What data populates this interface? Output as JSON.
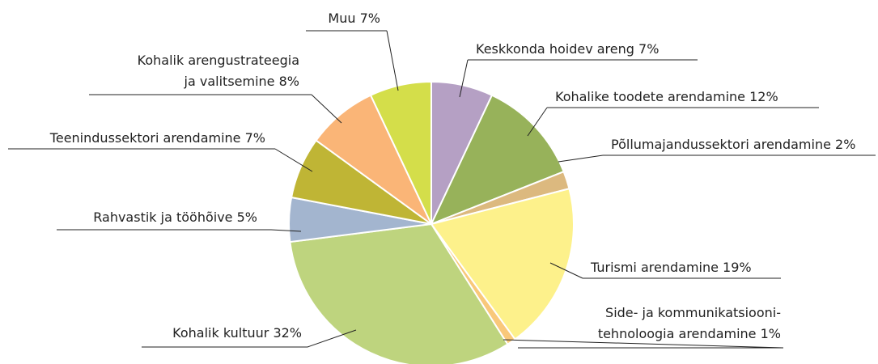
{
  "chart_data": {
    "type": "pie",
    "categories": [
      "Keskkonda hoidev areng",
      "Kohalike toodete arendamine",
      "Põllumajandussektori arendamine",
      "Turismi arendamine",
      "Side- ja kommunikatsiooni-\ntehnoloogia arendamine",
      "Kohalik kultuur",
      "Rahvastik ja tööhõive",
      "Teenindussektori arendamine",
      "Kohalik arengustrateegia\nja valitsemine",
      "Muu"
    ],
    "values": [
      7,
      12,
      2,
      19,
      1,
      32,
      5,
      7,
      8,
      7
    ],
    "value_labels": [
      "7%",
      "12%",
      "2%",
      "19%",
      "1%",
      "32%",
      "5%",
      "7%",
      "8%",
      "7%"
    ],
    "colors": [
      "#b5a0c4",
      "#97b25a",
      "#dcb97f",
      "#fdf18b",
      "#f9c87a",
      "#bed47e",
      "#a3b5cf",
      "#bfb535",
      "#fab577",
      "#d4de4a"
    ]
  }
}
